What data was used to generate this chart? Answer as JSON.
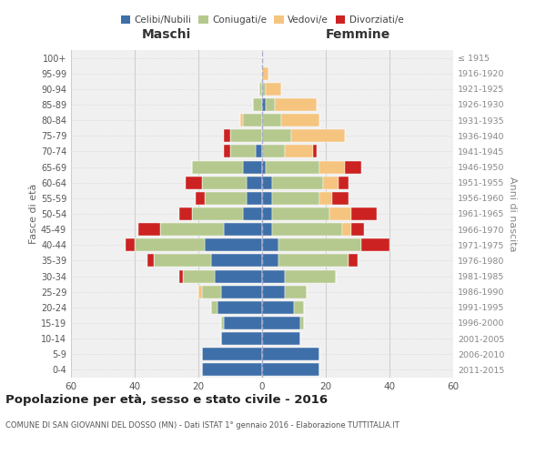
{
  "age_groups": [
    "0-4",
    "5-9",
    "10-14",
    "15-19",
    "20-24",
    "25-29",
    "30-34",
    "35-39",
    "40-44",
    "45-49",
    "50-54",
    "55-59",
    "60-64",
    "65-69",
    "70-74",
    "75-79",
    "80-84",
    "85-89",
    "90-94",
    "95-99",
    "100+"
  ],
  "birth_years": [
    "2011-2015",
    "2006-2010",
    "2001-2005",
    "1996-2000",
    "1991-1995",
    "1986-1990",
    "1981-1985",
    "1976-1980",
    "1971-1975",
    "1966-1970",
    "1961-1965",
    "1956-1960",
    "1951-1955",
    "1946-1950",
    "1941-1945",
    "1936-1940",
    "1931-1935",
    "1926-1930",
    "1921-1925",
    "1916-1920",
    "≤ 1915"
  ],
  "maschi": {
    "celibi": [
      19,
      19,
      13,
      12,
      14,
      13,
      15,
      16,
      18,
      12,
      6,
      5,
      5,
      6,
      2,
      0,
      0,
      0,
      0,
      0,
      0
    ],
    "coniugati": [
      0,
      0,
      0,
      1,
      2,
      6,
      10,
      18,
      22,
      20,
      16,
      13,
      14,
      16,
      8,
      10,
      6,
      3,
      1,
      0,
      0
    ],
    "vedovi": [
      0,
      0,
      0,
      0,
      0,
      1,
      0,
      0,
      0,
      0,
      0,
      0,
      0,
      0,
      0,
      0,
      1,
      0,
      0,
      0,
      0
    ],
    "divorziati": [
      0,
      0,
      0,
      0,
      0,
      0,
      1,
      2,
      3,
      7,
      4,
      3,
      5,
      0,
      2,
      2,
      0,
      0,
      0,
      0,
      0
    ]
  },
  "femmine": {
    "nubili": [
      18,
      18,
      12,
      12,
      10,
      7,
      7,
      5,
      5,
      3,
      3,
      3,
      3,
      1,
      0,
      0,
      0,
      1,
      0,
      0,
      0
    ],
    "coniugate": [
      0,
      0,
      0,
      1,
      3,
      7,
      16,
      22,
      26,
      22,
      18,
      15,
      16,
      17,
      7,
      9,
      6,
      3,
      1,
      0,
      0
    ],
    "vedove": [
      0,
      0,
      0,
      0,
      0,
      0,
      0,
      0,
      0,
      3,
      7,
      4,
      5,
      8,
      9,
      17,
      12,
      13,
      5,
      2,
      0
    ],
    "divorziate": [
      0,
      0,
      0,
      0,
      0,
      0,
      0,
      3,
      9,
      4,
      8,
      5,
      3,
      5,
      1,
      0,
      0,
      0,
      0,
      0,
      0
    ]
  },
  "colors": {
    "celibi_nubili": "#3e6fa8",
    "coniugati": "#b5c98e",
    "vedovi": "#f5c47f",
    "divorziati": "#cc2222"
  },
  "xlim": 60,
  "title": "Popolazione per età, sesso e stato civile - 2016",
  "subtitle": "COMUNE DI SAN GIOVANNI DEL DOSSO (MN) - Dati ISTAT 1° gennaio 2016 - Elaborazione TUTTITALIA.IT",
  "ylabel_left": "Fasce di età",
  "ylabel_right": "Anni di nascita",
  "xlabel_left": "Maschi",
  "xlabel_right": "Femmine",
  "background_color": "#ffffff",
  "plot_bg": "#f0f0f0",
  "grid_color": "#cccccc"
}
